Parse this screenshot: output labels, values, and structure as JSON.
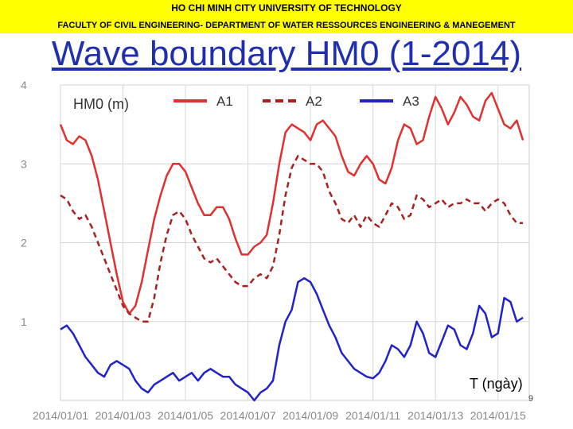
{
  "header": {
    "university": "HO CHI MINH CITY UNIVERSITY OF TECHNOLOGY",
    "faculty": "FACULTY OF CIVIL ENGINEERING- DEPARTMENT OF WATER RESSOURCES ENGINEERING & MANEGEMENT"
  },
  "slide_title": "Wave boundary HM0 (1-2014)",
  "page_number": "9",
  "colors": {
    "banner": "#ffff00",
    "title": "#1f2fb0",
    "A1": "#e03030",
    "A2": "#a82020",
    "A3": "#2222cc"
  },
  "chart_data": {
    "type": "line",
    "title": "HM0 (m)",
    "xlabel": "T (ngày)",
    "ylabel": "",
    "ylim": [
      0,
      4
    ],
    "xlim": [
      0,
      15
    ],
    "grid": true,
    "legend_position": "top",
    "yticks": [
      "1",
      "2",
      "3",
      "4"
    ],
    "ytick_values": [
      1,
      2,
      3,
      4
    ],
    "xticks": [
      "2014/01/01",
      "2014/01/03",
      "2014/01/05",
      "2014/01/07",
      "2014/01/09",
      "2014/01/11",
      "2014/01/13",
      "2014/01/15"
    ],
    "xtick_values": [
      0,
      2,
      4,
      6,
      8,
      10,
      12,
      14
    ],
    "series": [
      {
        "name": "A1",
        "style": "solid",
        "x": [
          0,
          0.2,
          0.4,
          0.6,
          0.8,
          1.0,
          1.2,
          1.4,
          1.6,
          1.8,
          2.0,
          2.2,
          2.4,
          2.6,
          2.8,
          3.0,
          3.2,
          3.4,
          3.6,
          3.8,
          4.0,
          4.2,
          4.4,
          4.6,
          4.8,
          5.0,
          5.2,
          5.4,
          5.6,
          5.8,
          6.0,
          6.2,
          6.4,
          6.6,
          6.8,
          7.0,
          7.2,
          7.4,
          7.6,
          7.8,
          8.0,
          8.2,
          8.4,
          8.6,
          8.8,
          9.0,
          9.2,
          9.4,
          9.6,
          9.8,
          10.0,
          10.2,
          10.4,
          10.6,
          10.8,
          11.0,
          11.2,
          11.4,
          11.6,
          11.8,
          12.0,
          12.2,
          12.4,
          12.6,
          12.8,
          13.0,
          13.2,
          13.4,
          13.6,
          13.8,
          14.0,
          14.2,
          14.4,
          14.6,
          14.8
        ],
        "values": [
          3.5,
          3.3,
          3.25,
          3.35,
          3.3,
          3.1,
          2.8,
          2.4,
          2.0,
          1.6,
          1.25,
          1.1,
          1.2,
          1.5,
          1.9,
          2.3,
          2.6,
          2.85,
          3.0,
          3.0,
          2.9,
          2.7,
          2.5,
          2.35,
          2.35,
          2.45,
          2.45,
          2.3,
          2.05,
          1.85,
          1.85,
          1.95,
          2.0,
          2.1,
          2.5,
          3.0,
          3.4,
          3.5,
          3.45,
          3.4,
          3.3,
          3.5,
          3.55,
          3.45,
          3.35,
          3.1,
          2.9,
          2.85,
          3.0,
          3.1,
          3.0,
          2.8,
          2.75,
          2.95,
          3.3,
          3.5,
          3.45,
          3.25,
          3.3,
          3.6,
          3.85,
          3.7,
          3.5,
          3.65,
          3.85,
          3.75,
          3.6,
          3.55,
          3.8,
          3.9,
          3.7,
          3.5,
          3.45,
          3.55,
          3.3
        ]
      },
      {
        "name": "A2",
        "style": "dashed",
        "x": [
          0,
          0.2,
          0.4,
          0.6,
          0.8,
          1.0,
          1.2,
          1.4,
          1.6,
          1.8,
          2.0,
          2.2,
          2.4,
          2.6,
          2.8,
          3.0,
          3.2,
          3.4,
          3.6,
          3.8,
          4.0,
          4.2,
          4.4,
          4.6,
          4.8,
          5.0,
          5.2,
          5.4,
          5.6,
          5.8,
          6.0,
          6.2,
          6.4,
          6.6,
          6.8,
          7.0,
          7.2,
          7.4,
          7.6,
          7.8,
          8.0,
          8.2,
          8.4,
          8.6,
          8.8,
          9.0,
          9.2,
          9.4,
          9.6,
          9.8,
          10.0,
          10.2,
          10.4,
          10.6,
          10.8,
          11.0,
          11.2,
          11.4,
          11.6,
          11.8,
          12.0,
          12.2,
          12.4,
          12.6,
          12.8,
          13.0,
          13.2,
          13.4,
          13.6,
          13.8,
          14.0,
          14.2,
          14.4,
          14.6,
          14.8
        ],
        "values": [
          2.6,
          2.55,
          2.4,
          2.3,
          2.35,
          2.2,
          2.0,
          1.8,
          1.6,
          1.4,
          1.2,
          1.1,
          1.05,
          1.0,
          1.0,
          1.3,
          1.75,
          2.1,
          2.35,
          2.4,
          2.3,
          2.1,
          1.95,
          1.8,
          1.75,
          1.8,
          1.7,
          1.6,
          1.5,
          1.45,
          1.45,
          1.55,
          1.6,
          1.55,
          1.7,
          2.1,
          2.6,
          2.95,
          3.1,
          3.05,
          3.0,
          3.0,
          2.9,
          2.65,
          2.5,
          2.3,
          2.25,
          2.35,
          2.2,
          2.35,
          2.25,
          2.2,
          2.35,
          2.5,
          2.45,
          2.3,
          2.35,
          2.6,
          2.55,
          2.45,
          2.5,
          2.55,
          2.45,
          2.5,
          2.5,
          2.55,
          2.5,
          2.5,
          2.4,
          2.5,
          2.55,
          2.5,
          2.35,
          2.25,
          2.25
        ]
      },
      {
        "name": "A3",
        "style": "solid",
        "x": [
          0,
          0.2,
          0.4,
          0.6,
          0.8,
          1.0,
          1.2,
          1.4,
          1.6,
          1.8,
          2.0,
          2.2,
          2.4,
          2.6,
          2.8,
          3.0,
          3.2,
          3.4,
          3.6,
          3.8,
          4.0,
          4.2,
          4.4,
          4.6,
          4.8,
          5.0,
          5.2,
          5.4,
          5.6,
          5.8,
          6.0,
          6.2,
          6.4,
          6.6,
          6.8,
          7.0,
          7.2,
          7.4,
          7.6,
          7.8,
          8.0,
          8.2,
          8.4,
          8.6,
          8.8,
          9.0,
          9.2,
          9.4,
          9.6,
          9.8,
          10.0,
          10.2,
          10.4,
          10.6,
          10.8,
          11.0,
          11.2,
          11.4,
          11.6,
          11.8,
          12.0,
          12.2,
          12.4,
          12.6,
          12.8,
          13.0,
          13.2,
          13.4,
          13.6,
          13.8,
          14.0,
          14.2,
          14.4,
          14.6,
          14.8
        ],
        "values": [
          0.9,
          0.95,
          0.85,
          0.7,
          0.55,
          0.45,
          0.35,
          0.3,
          0.45,
          0.5,
          0.45,
          0.4,
          0.25,
          0.15,
          0.1,
          0.2,
          0.25,
          0.3,
          0.35,
          0.25,
          0.3,
          0.35,
          0.25,
          0.35,
          0.4,
          0.35,
          0.3,
          0.3,
          0.2,
          0.15,
          0.1,
          0.0,
          0.1,
          0.15,
          0.25,
          0.7,
          1.0,
          1.15,
          1.5,
          1.55,
          1.5,
          1.35,
          1.15,
          0.95,
          0.8,
          0.6,
          0.5,
          0.4,
          0.35,
          0.3,
          0.28,
          0.35,
          0.5,
          0.7,
          0.65,
          0.55,
          0.7,
          1.0,
          0.85,
          0.6,
          0.55,
          0.75,
          0.95,
          0.9,
          0.7,
          0.65,
          0.85,
          1.2,
          1.1,
          0.8,
          0.85,
          1.3,
          1.25,
          1.0,
          1.05
        ]
      }
    ]
  }
}
